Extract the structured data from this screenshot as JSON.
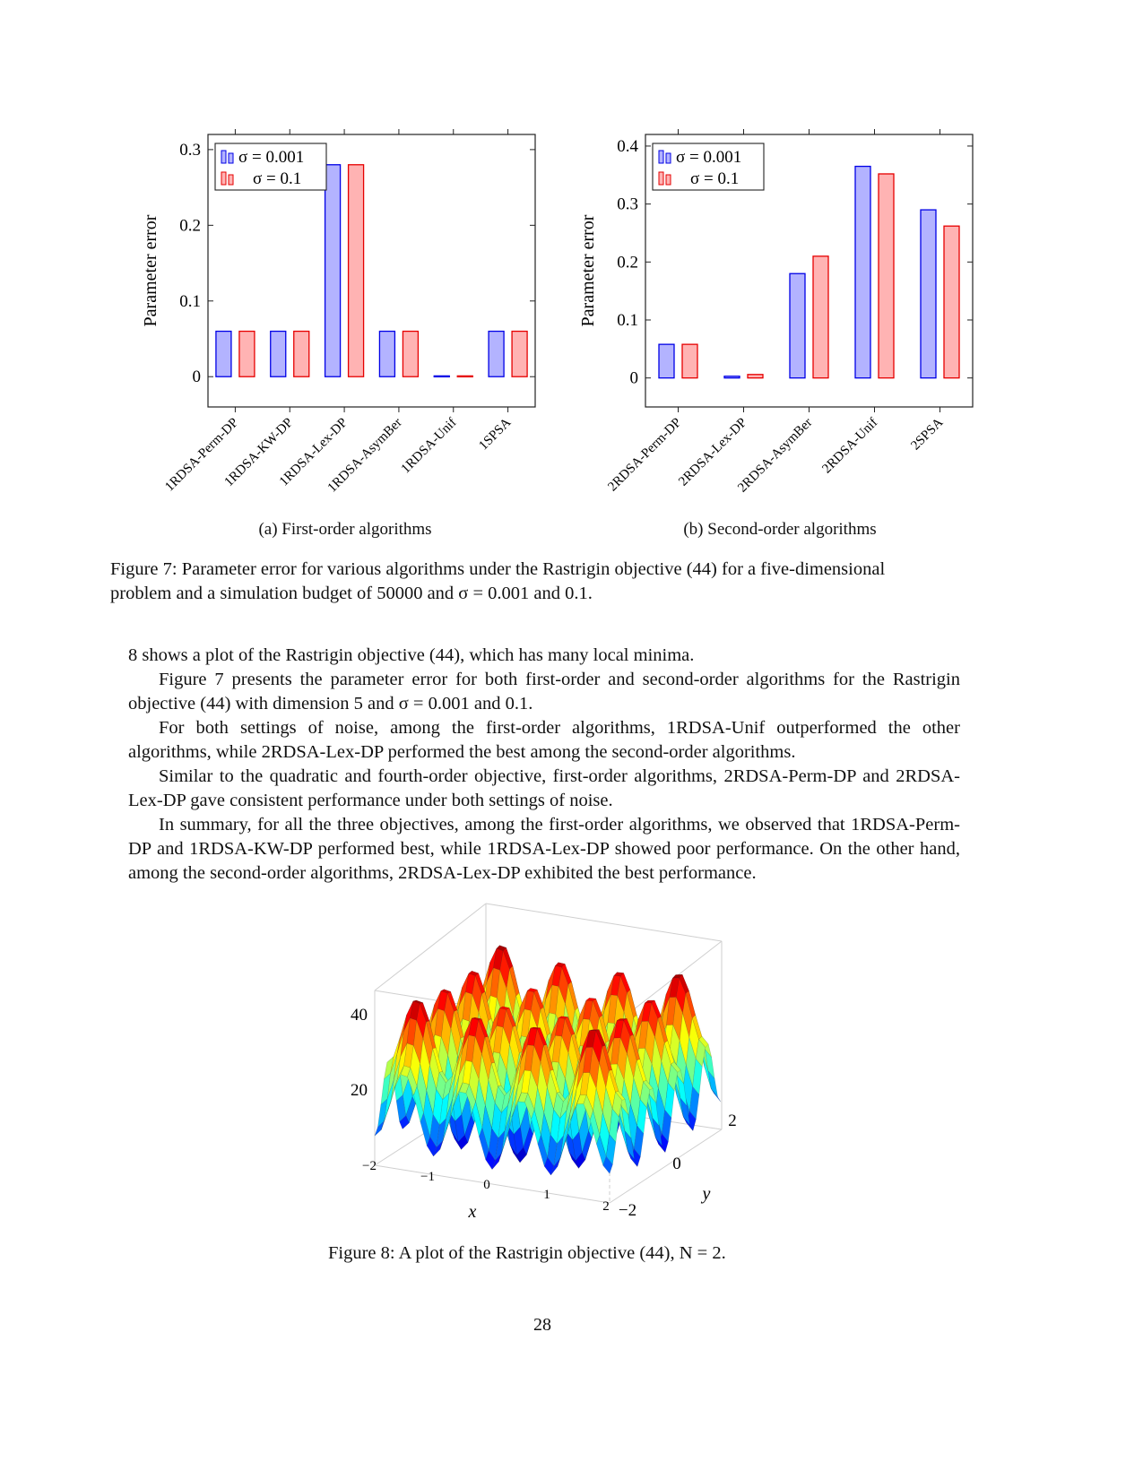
{
  "figure7": {
    "chart_data": [
      {
        "type": "bar",
        "ylabel": "Parameter error",
        "categories": [
          "1RDSA-Perm-DP",
          "1RDSA-KW-DP",
          "1RDSA-Lex-DP",
          "1RDSA-AsymBer",
          "1RDSA-Unif",
          "1SPSA"
        ],
        "series": [
          {
            "name": "σ = 0.001",
            "values": [
              0.06,
              0.06,
              0.28,
              0.06,
              0.001,
              0.06
            ]
          },
          {
            "name": "σ = 0.1",
            "values": [
              0.06,
              0.06,
              0.28,
              0.06,
              0.001,
              0.06
            ]
          }
        ],
        "ylim": [
          -0.04,
          0.32
        ],
        "yticks": [
          "0",
          "0.1",
          "0.2",
          "0.3"
        ],
        "legend": "top-left",
        "grid": false
      },
      {
        "type": "bar",
        "ylabel": "Parameter error",
        "categories": [
          "2RDSA-Perm-DP",
          "2RDSA-Lex-DP",
          "2RDSA-AsymBer",
          "2RDSA-Unif",
          "2SPSA"
        ],
        "series": [
          {
            "name": "σ = 0.001",
            "values": [
              0.058,
              0.003,
              0.18,
              0.365,
              0.29
            ]
          },
          {
            "name": "σ = 0.1",
            "values": [
              0.058,
              0.006,
              0.21,
              0.352,
              0.262
            ]
          }
        ],
        "ylim": [
          -0.05,
          0.42
        ],
        "yticks": [
          "0",
          "0.1",
          "0.2",
          "0.3",
          "0.4"
        ],
        "legend": "top-left",
        "grid": false
      }
    ],
    "colors": {
      "series1_fill": "#b3b3ff",
      "series1_stroke": "#0000e6",
      "series2_fill": "#ffb3b3",
      "series2_stroke": "#e60000"
    },
    "subcaption_a": "(a) First-order algorithms",
    "subcaption_b": "(b) Second-order algorithms",
    "caption_line1": "Figure 7: Parameter error for various algorithms under the Rastrigin objective (44) for a five-dimensional",
    "caption_line2": "problem and a simulation budget of 50000 and σ = 0.001 and 0.1."
  },
  "body": {
    "p1": "8 shows a plot of the Rastrigin objective (44), which has many local minima.",
    "p2": "Figure 7 presents the parameter error for both first-order and second-order algorithms for the Rastrigin objective (44) with dimension 5 and σ = 0.001 and 0.1.",
    "p3": "For both settings of noise, among the first-order algorithms, 1RDSA-Unif outperformed the other algorithms, while 2RDSA-Lex-DP performed the best among the second-order algorithms.",
    "p4": "Similar to the quadratic and fourth-order objective, first-order algorithms, 2RDSA-Perm-DP and 2RDSA-Lex-DP gave consistent performance under both settings of noise.",
    "p5": "In summary, for all the three objectives, among the first-order algorithms, we observed that 1RDSA-Perm-DP and 1RDSA-KW-DP performed best, while 1RDSA-Lex-DP showed poor performance. On the other hand, among the second-order algorithms, 2RDSA-Lex-DP exhibited the best performance."
  },
  "figure8": {
    "z_ticks": [
      "20",
      "40"
    ],
    "x_ticks": [
      "−2",
      "−1",
      "0",
      "1",
      "2"
    ],
    "y_ticks": [
      "−2",
      "0",
      "2"
    ],
    "x_label": "x",
    "y_label": "y",
    "caption": "Figure 8: A plot of the Rastrigin objective (44), N = 2."
  },
  "page_number": "28"
}
